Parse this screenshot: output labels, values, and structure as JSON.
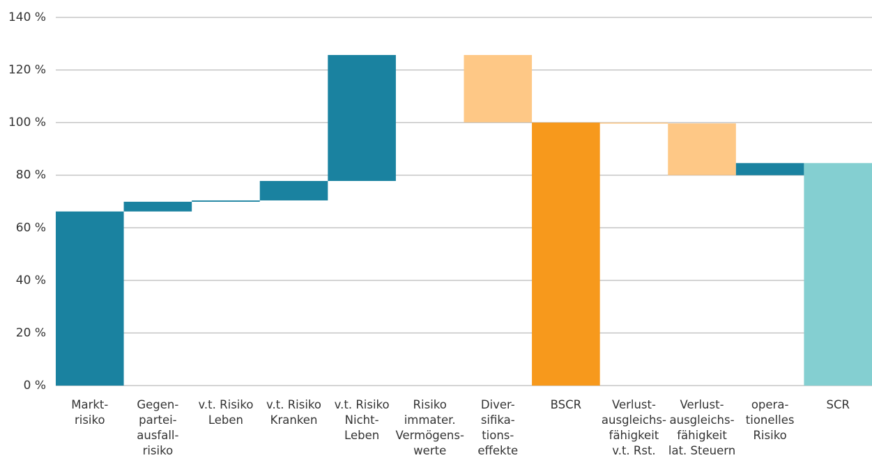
{
  "chart_data": {
    "type": "waterfall",
    "categories": [
      "Markt-\nrisiko",
      "Gegen-\npartei-\nausfall-\nrisiko",
      "v.t. Risiko\nLeben",
      "v.t. Risiko\nKranken",
      "v.t. Risiko\nNicht-\nLeben",
      "Risiko\nimmater.\nVermögens-\nwerte",
      "Diver-\nsifika-\ntions-\neffekte",
      "BSCR",
      "Verlust-\nausgleichs-\nfähigkeit\nv.t. Rst.",
      "Verlust-\nausgleichs-\nfähigkeit\nlat. Steuern",
      "opera-\ntionelles\nRisiko",
      "SCR"
    ],
    "values": [
      66.2,
      3.7,
      0.5,
      7.4,
      47.9,
      0,
      -25.6,
      100,
      -0.3,
      -19.7,
      4.6,
      84.6
    ],
    "is_total": [
      false,
      false,
      false,
      false,
      false,
      false,
      false,
      true,
      false,
      false,
      false,
      true
    ],
    "colors": [
      "#1a82a0",
      "#1a82a0",
      "#1a82a0",
      "#1a82a0",
      "#1a82a0",
      "#1a82a0",
      "#fec886",
      "#f7991c",
      "#fec886",
      "#fec886",
      "#1a82a0",
      "#84cfd1"
    ],
    "ylim": [
      0,
      140
    ],
    "yticks": [
      {
        "value": 0,
        "label": "0 %"
      },
      {
        "value": 20,
        "label": "20 %"
      },
      {
        "value": 40,
        "label": "40 %"
      },
      {
        "value": 60,
        "label": "60 %"
      },
      {
        "value": 80,
        "label": "80 %"
      },
      {
        "value": 100,
        "label": "100 %"
      },
      {
        "value": 120,
        "label": "120 %"
      },
      {
        "value": 140,
        "label": "140 %"
      }
    ],
    "grid": true
  }
}
